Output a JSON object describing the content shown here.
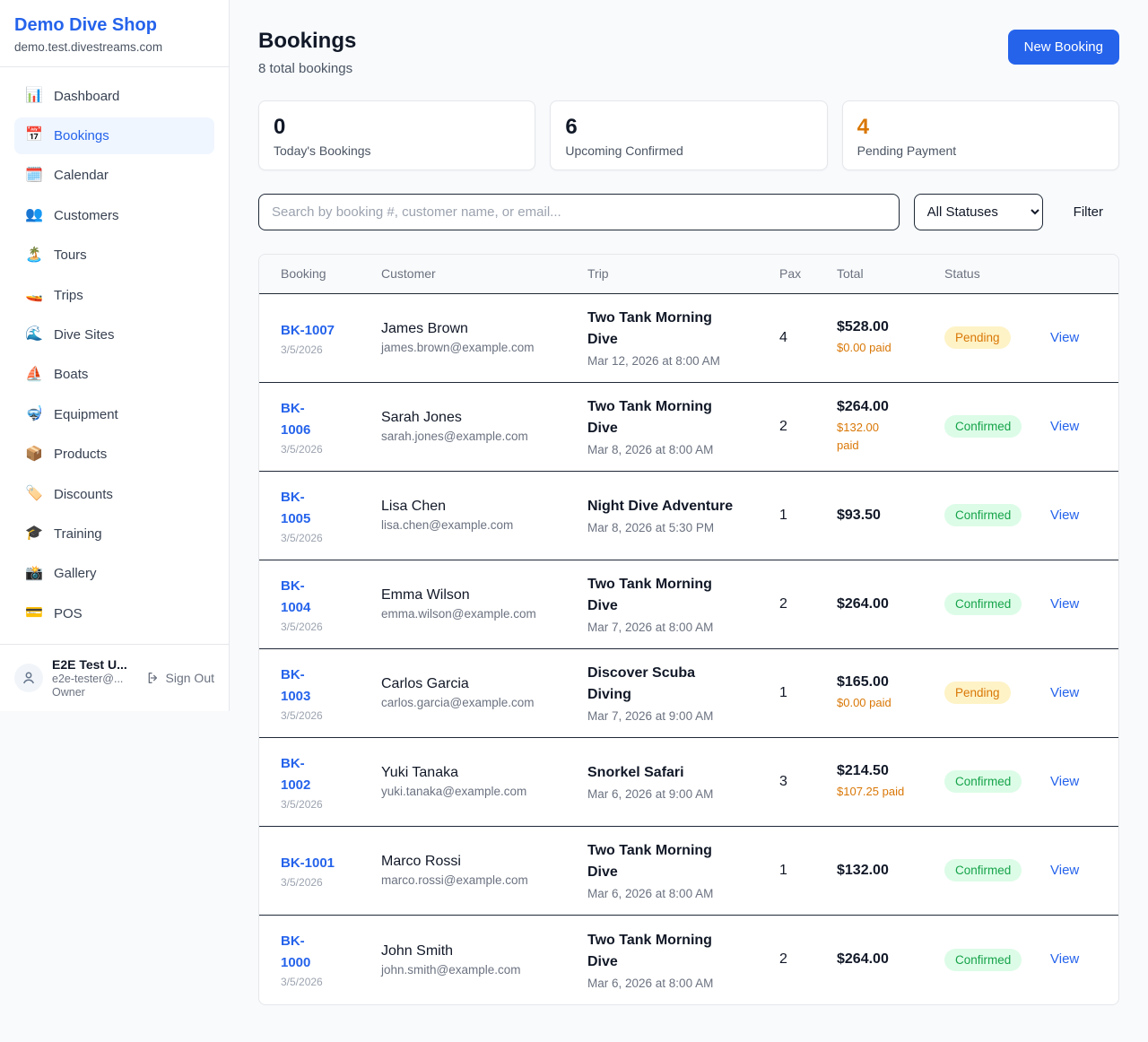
{
  "colors": {
    "accent": "#2563eb",
    "orange": "#d97706",
    "pending_bg": "#fef3c7",
    "pending_text": "#d97706",
    "confirmed_bg": "#dcfce7",
    "confirmed_text": "#16a34a"
  },
  "sidebar": {
    "brand": "Demo Dive Shop",
    "domain": "demo.test.divestreams.com",
    "items": [
      {
        "slug": "dashboard",
        "icon": "📊",
        "label": "Dashboard",
        "active": false
      },
      {
        "slug": "bookings",
        "icon": "📅",
        "label": "Bookings",
        "active": true
      },
      {
        "slug": "calendar",
        "icon": "🗓️",
        "label": "Calendar",
        "active": false
      },
      {
        "slug": "customers",
        "icon": "👥",
        "label": "Customers",
        "active": false
      },
      {
        "slug": "tours",
        "icon": "🏝️",
        "label": "Tours",
        "active": false
      },
      {
        "slug": "trips",
        "icon": "🚤",
        "label": "Trips",
        "active": false
      },
      {
        "slug": "dive-sites",
        "icon": "🌊",
        "label": "Dive Sites",
        "active": false
      },
      {
        "slug": "boats",
        "icon": "⛵",
        "label": "Boats",
        "active": false
      },
      {
        "slug": "equipment",
        "icon": "🤿",
        "label": "Equipment",
        "active": false
      },
      {
        "slug": "products",
        "icon": "📦",
        "label": "Products",
        "active": false
      },
      {
        "slug": "discounts",
        "icon": "🏷️",
        "label": "Discounts",
        "active": false
      },
      {
        "slug": "training",
        "icon": "🎓",
        "label": "Training",
        "active": false
      },
      {
        "slug": "gallery",
        "icon": "📸",
        "label": "Gallery",
        "active": false
      },
      {
        "slug": "pos",
        "icon": "💳",
        "label": "POS",
        "active": false
      }
    ],
    "user": {
      "name": "E2E Test U...",
      "email": "e2e-tester@...",
      "role": "Owner",
      "signout_label": "Sign Out"
    }
  },
  "header": {
    "title": "Bookings",
    "subtitle": "8 total bookings",
    "new_booking_label": "New Booking"
  },
  "stats": [
    {
      "value": "0",
      "label": "Today's Bookings",
      "orange": false
    },
    {
      "value": "6",
      "label": "Upcoming Confirmed",
      "orange": false
    },
    {
      "value": "4",
      "label": "Pending Payment",
      "orange": true
    }
  ],
  "filters": {
    "search_placeholder": "Search by booking #, customer name, or email...",
    "status_selected": "All Statuses",
    "filter_label": "Filter"
  },
  "table": {
    "columns": [
      "Booking",
      "Customer",
      "Trip",
      "Pax",
      "Total",
      "Status",
      ""
    ],
    "view_label": "View",
    "rows": [
      {
        "id_lines": [
          "BK-1007"
        ],
        "date": "3/5/2026",
        "name": "James Brown",
        "email": "james.brown@example.com",
        "trip_lines": [
          "Two Tank Morning",
          "Dive"
        ],
        "trip_datetime": "Mar 12, 2026 at 8:00 AM",
        "pax": "4",
        "total": "$528.00",
        "paid_lines": [
          "$0.00 paid"
        ],
        "status": "Pending"
      },
      {
        "id_lines": [
          "BK-",
          "1006"
        ],
        "date": "3/5/2026",
        "name": "Sarah Jones",
        "email": "sarah.jones@example.com",
        "trip_lines": [
          "Two Tank Morning",
          "Dive"
        ],
        "trip_datetime": "Mar 8, 2026 at 8:00 AM",
        "pax": "2",
        "total": "$264.00",
        "paid_lines": [
          "$132.00",
          "paid"
        ],
        "status": "Confirmed"
      },
      {
        "id_lines": [
          "BK-",
          "1005"
        ],
        "date": "3/5/2026",
        "name": "Lisa Chen",
        "email": "lisa.chen@example.com",
        "trip_lines": [
          "Night Dive Adventure"
        ],
        "trip_datetime": "Mar 8, 2026 at 5:30 PM",
        "pax": "1",
        "total": "$93.50",
        "paid_lines": [],
        "status": "Confirmed"
      },
      {
        "id_lines": [
          "BK-",
          "1004"
        ],
        "date": "3/5/2026",
        "name": "Emma Wilson",
        "email": "emma.wilson@example.com",
        "trip_lines": [
          "Two Tank Morning",
          "Dive"
        ],
        "trip_datetime": "Mar 7, 2026 at 8:00 AM",
        "pax": "2",
        "total": "$264.00",
        "paid_lines": [],
        "status": "Confirmed"
      },
      {
        "id_lines": [
          "BK-",
          "1003"
        ],
        "date": "3/5/2026",
        "name": "Carlos Garcia",
        "email": "carlos.garcia@example.com",
        "trip_lines": [
          "Discover Scuba",
          "Diving"
        ],
        "trip_datetime": "Mar 7, 2026 at 9:00 AM",
        "pax": "1",
        "total": "$165.00",
        "paid_lines": [
          "$0.00 paid"
        ],
        "status": "Pending"
      },
      {
        "id_lines": [
          "BK-",
          "1002"
        ],
        "date": "3/5/2026",
        "name": "Yuki Tanaka",
        "email": "yuki.tanaka@example.com",
        "trip_lines": [
          "Snorkel Safari"
        ],
        "trip_datetime": "Mar 6, 2026 at 9:00 AM",
        "pax": "3",
        "total": "$214.50",
        "paid_lines": [
          "$107.25 paid"
        ],
        "status": "Confirmed"
      },
      {
        "id_lines": [
          "BK-1001"
        ],
        "date": "3/5/2026",
        "name": "Marco Rossi",
        "email": "marco.rossi@example.com",
        "trip_lines": [
          "Two Tank Morning",
          "Dive"
        ],
        "trip_datetime": "Mar 6, 2026 at 8:00 AM",
        "pax": "1",
        "total": "$132.00",
        "paid_lines": [],
        "status": "Confirmed"
      },
      {
        "id_lines": [
          "BK-",
          "1000"
        ],
        "date": "3/5/2026",
        "name": "John Smith",
        "email": "john.smith@example.com",
        "trip_lines": [
          "Two Tank Morning",
          "Dive"
        ],
        "trip_datetime": "Mar 6, 2026 at 8:00 AM",
        "pax": "2",
        "total": "$264.00",
        "paid_lines": [],
        "status": "Confirmed"
      }
    ]
  }
}
